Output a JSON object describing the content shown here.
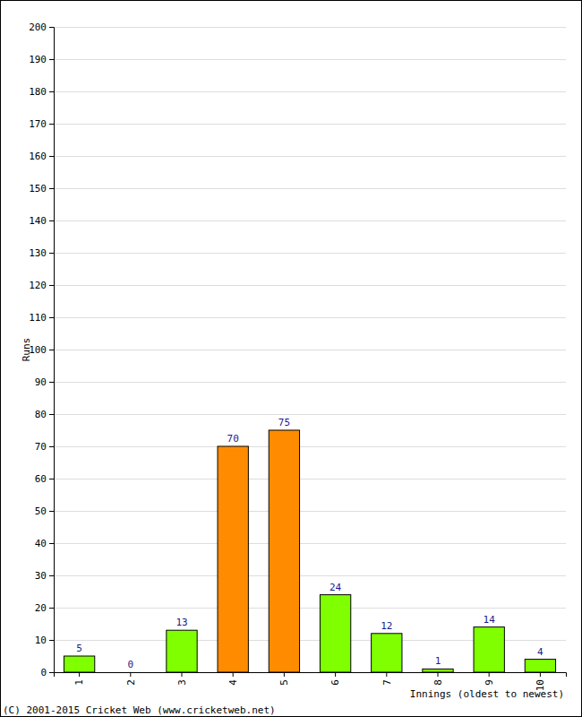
{
  "chart_data": {
    "type": "bar",
    "categories": [
      "1",
      "2",
      "3",
      "4",
      "5",
      "6",
      "7",
      "8",
      "9",
      "10"
    ],
    "values": [
      5,
      0,
      13,
      70,
      75,
      24,
      12,
      1,
      14,
      4
    ],
    "colors": [
      "#80ff00",
      "#80ff00",
      "#80ff00",
      "#ff8c00",
      "#ff8c00",
      "#80ff00",
      "#80ff00",
      "#80ff00",
      "#80ff00",
      "#80ff00"
    ],
    "ylim": [
      0,
      200
    ],
    "yticks": [
      0,
      10,
      20,
      30,
      40,
      50,
      60,
      70,
      80,
      90,
      100,
      110,
      120,
      130,
      140,
      150,
      160,
      170,
      180,
      190,
      200
    ],
    "grid": true,
    "data_labels": true,
    "x_label": "Innings (oldest to newest)",
    "y_label": "Runs",
    "annotation": "(C) 2001-2015 Cricket Web (www.cricketweb.net)"
  }
}
